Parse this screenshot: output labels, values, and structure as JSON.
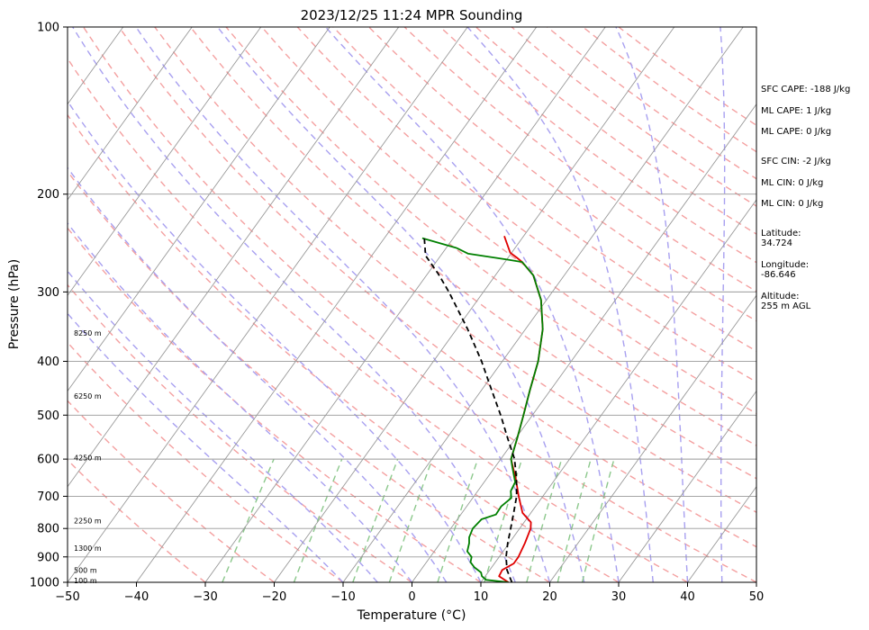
{
  "chart_data": {
    "type": "skew-t",
    "title": "2023/12/25 11:24 MPR Sounding",
    "xlabel": "Temperature (°C)",
    "ylabel": "Pressure (hPa)",
    "xlim": [
      -50,
      50
    ],
    "ylim": [
      1000,
      100
    ],
    "y_scale": "log",
    "x_ticks": [
      -50,
      -40,
      -30,
      -20,
      -10,
      0,
      10,
      20,
      30,
      40,
      50
    ],
    "y_ticks": [
      1000,
      900,
      800,
      700,
      600,
      500,
      400,
      300,
      200,
      100
    ],
    "grid": true,
    "series": [
      {
        "role": "temperature",
        "color": "#e00000",
        "points": [
          [
            14.0,
            1000
          ],
          [
            12.0,
            975
          ],
          [
            11.8,
            950
          ],
          [
            12.8,
            925
          ],
          [
            12.8,
            900
          ],
          [
            12.3,
            850
          ],
          [
            11.6,
            800
          ],
          [
            11.0,
            780
          ],
          [
            8.8,
            750
          ],
          [
            6.5,
            700
          ],
          [
            4.2,
            650
          ],
          [
            1.5,
            600
          ],
          [
            0.2,
            550
          ],
          [
            -1.3,
            500
          ],
          [
            -3.0,
            450
          ],
          [
            -4.8,
            400
          ],
          [
            -7.5,
            350
          ],
          [
            -10.8,
            310
          ],
          [
            -14.5,
            280
          ],
          [
            -17.5,
            265
          ],
          [
            -18.8,
            260
          ],
          [
            -20.2,
            255
          ],
          [
            -22.8,
            238
          ]
        ]
      },
      {
        "role": "dewpoint",
        "color": "#008000",
        "points": [
          [
            14.0,
            1000
          ],
          [
            10.5,
            990
          ],
          [
            9.5,
            975
          ],
          [
            9.0,
            960
          ],
          [
            7.5,
            940
          ],
          [
            6.4,
            920
          ],
          [
            6.0,
            900
          ],
          [
            4.8,
            880
          ],
          [
            4.2,
            850
          ],
          [
            3.6,
            830
          ],
          [
            3.2,
            800
          ],
          [
            3.5,
            770
          ],
          [
            5.1,
            755
          ],
          [
            5.0,
            730
          ],
          [
            5.6,
            705
          ],
          [
            4.8,
            685
          ],
          [
            4.5,
            660
          ],
          [
            2.5,
            620
          ],
          [
            1.5,
            600
          ],
          [
            0.2,
            550
          ],
          [
            -1.3,
            500
          ],
          [
            -3.0,
            450
          ],
          [
            -4.8,
            400
          ],
          [
            -7.5,
            350
          ],
          [
            -10.8,
            310
          ],
          [
            -14.5,
            280
          ],
          [
            -17.5,
            265
          ],
          [
            -20.2,
            262
          ],
          [
            -26.2,
            256
          ],
          [
            -28.5,
            250
          ],
          [
            -34.5,
            240
          ]
        ]
      },
      {
        "role": "parcel",
        "color": "#000000",
        "dash": "6,4",
        "points": [
          [
            14.5,
            1000
          ],
          [
            12.5,
            950
          ],
          [
            11.0,
            900
          ],
          [
            9.8,
            850
          ],
          [
            8.7,
            800
          ],
          [
            7.5,
            750
          ],
          [
            6.2,
            700
          ],
          [
            4.3,
            650
          ],
          [
            2.0,
            600
          ],
          [
            -1.2,
            550
          ],
          [
            -4.6,
            500
          ],
          [
            -8.6,
            450
          ],
          [
            -13.0,
            400
          ],
          [
            -18.4,
            350
          ],
          [
            -25.0,
            300
          ],
          [
            -28.5,
            278
          ],
          [
            -32.2,
            258
          ],
          [
            -34.2,
            240
          ]
        ]
      }
    ],
    "height_labels": [
      {
        "text": "100 m",
        "p": 993
      },
      {
        "text": "500 m",
        "p": 950
      },
      {
        "text": "1300 m",
        "p": 867
      },
      {
        "text": "2250 m",
        "p": 775
      },
      {
        "text": "4250 m",
        "p": 596
      },
      {
        "text": "6250 m",
        "p": 462
      },
      {
        "text": "8250 m",
        "p": 356
      }
    ],
    "indices": [
      "SFC CAPE: -188 J/kg",
      "ML CAPE: 1 J/kg",
      "ML CAPE: 0 J/kg",
      "SFC CIN: -2 J/kg",
      "ML CIN: 0 J/kg",
      "ML CIN: 0 J/kg",
      "Latitude:\n34.724",
      "Longitude:\n-86.646",
      "Altitude:\n255 m AGL"
    ],
    "colors": {
      "isotherm": "#999999",
      "dry_adiabat": "#f4a0a0",
      "moist_adiabat": "#a8a0f0",
      "mixing_ratio": "#8cc88c"
    }
  }
}
